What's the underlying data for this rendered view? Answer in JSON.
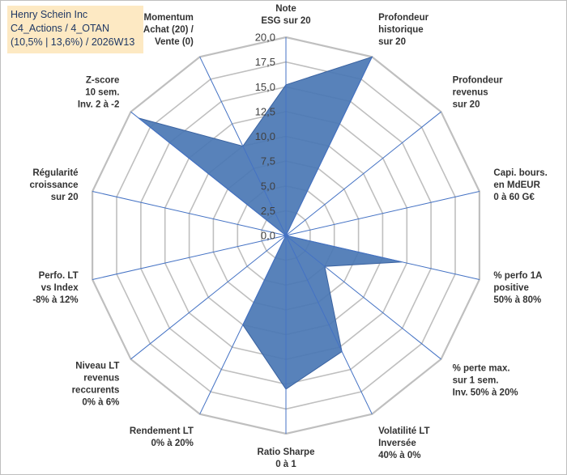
{
  "title": {
    "line1": "Henry Schein Inc",
    "line2": "C4_Actions / 4_OTAN",
    "line3": "(10,5% | 13,6%) / 2026W13"
  },
  "colors": {
    "fill": "#4a77b4",
    "stroke": "#3a62a0",
    "grid": "#bfbfbf",
    "axis": "#4472c4",
    "title_bg": "#fde9c3",
    "title_text": "#1f3864"
  },
  "chart_data": {
    "type": "radar",
    "title": "",
    "rlim": [
      0,
      20
    ],
    "ticks": [
      "0,0",
      "2,5",
      "5,0",
      "7,5",
      "10,0",
      "12,5",
      "15,0",
      "17,5",
      "20,0"
    ],
    "axes": [
      {
        "label": [
          "Note",
          "ESG sur 20"
        ],
        "value": 15.2
      },
      {
        "label": [
          "Profondeur",
          "historique",
          "sur 20"
        ],
        "value": 20.0
      },
      {
        "label": [
          "Profondeur",
          "revenus",
          "sur 20"
        ],
        "value": 0
      },
      {
        "label": [
          "Capi. bours.",
          "en MdEUR",
          "0 à 60 G€"
        ],
        "value": 0
      },
      {
        "label": [
          "% perfo 1A",
          "positive",
          "50% à 80%"
        ],
        "value": 12.0
      },
      {
        "label": [
          "% perte max.",
          "sur 1 sem.",
          "Inv. 50% à 20%"
        ],
        "value": 5.0
      },
      {
        "label": [
          "Volatilité LT",
          "Inversée",
          "40% à 0%"
        ],
        "value": 13.0
      },
      {
        "label": [
          "Ratio Sharpe",
          "0 à 1"
        ],
        "value": 15.5
      },
      {
        "label": [
          "Rendement LT",
          "0% à 20%"
        ],
        "value": 10.0
      },
      {
        "label": [
          "Niveau LT",
          "revenus",
          "reccurents",
          "0% à 6%"
        ],
        "value": 0
      },
      {
        "label": [
          "Perfo. LT",
          "vs Index",
          "-8% à 12%"
        ],
        "value": 0
      },
      {
        "label": [
          "Régularité",
          "croissance",
          "sur 20"
        ],
        "value": 0
      },
      {
        "label": [
          "Z-score",
          "10 sem.",
          "Inv. 2 à -2"
        ],
        "value": 19.0
      },
      {
        "label": [
          "Momentum",
          "Achat (20) /",
          "Vente (0)"
        ],
        "value": 10.0
      }
    ]
  }
}
